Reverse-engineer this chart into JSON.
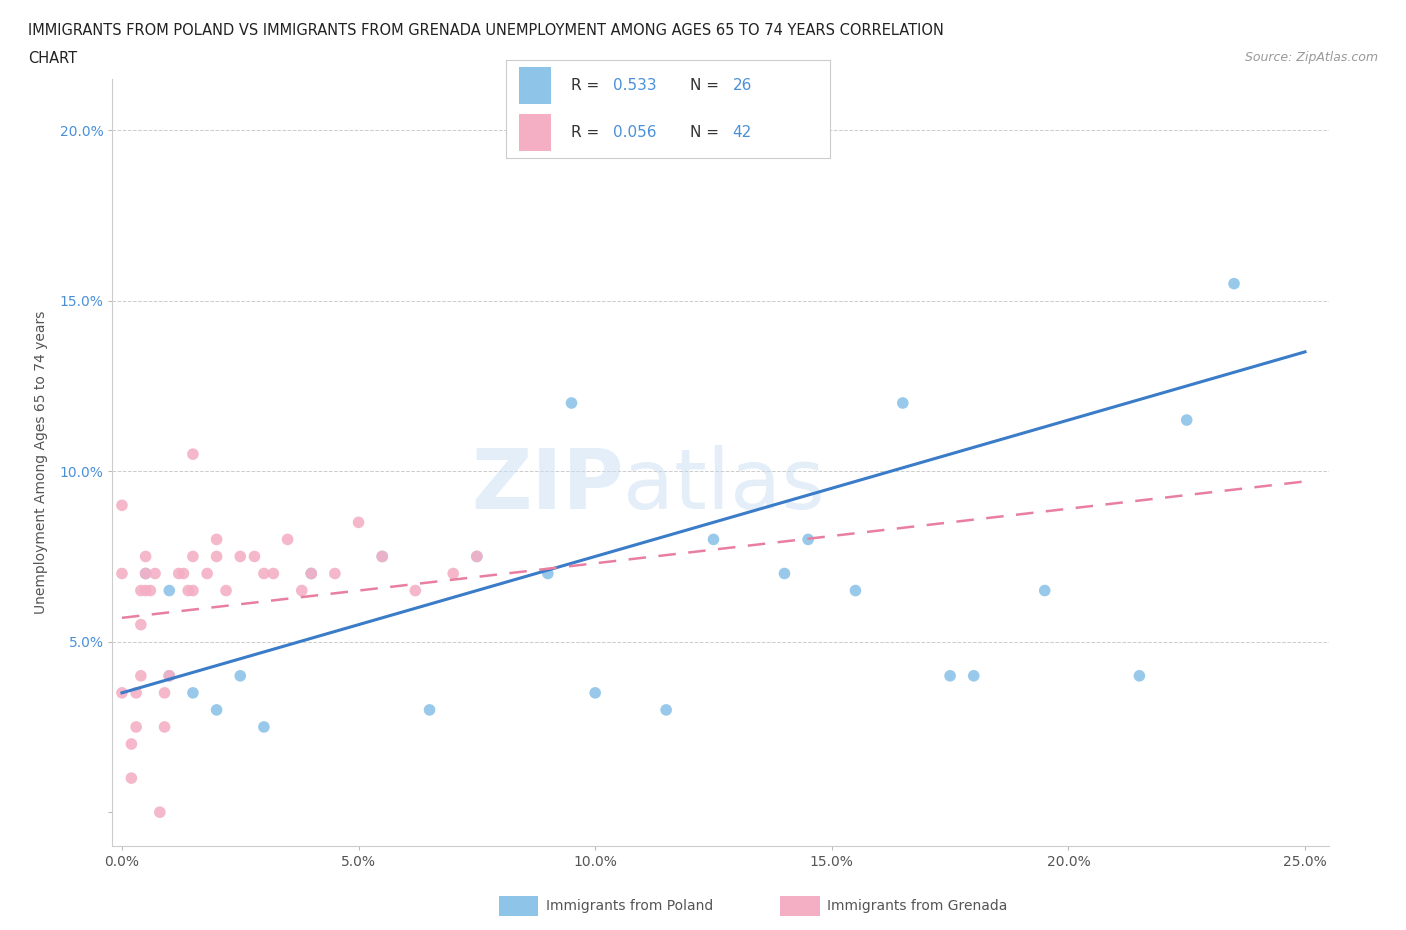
{
  "title_line1": "IMMIGRANTS FROM POLAND VS IMMIGRANTS FROM GRENADA UNEMPLOYMENT AMONG AGES 65 TO 74 YEARS CORRELATION",
  "title_line2": "CHART",
  "source": "Source: ZipAtlas.com",
  "ylabel": "Unemployment Among Ages 65 to 74 years",
  "xlim": [
    -0.002,
    0.255
  ],
  "ylim": [
    -0.01,
    0.215
  ],
  "xticks": [
    0.0,
    0.05,
    0.1,
    0.15,
    0.2,
    0.25
  ],
  "xticklabels": [
    "0.0%",
    "5.0%",
    "10.0%",
    "15.0%",
    "20.0%",
    "25.0%"
  ],
  "yticks": [
    0.0,
    0.05,
    0.1,
    0.15,
    0.2
  ],
  "yticklabels": [
    "",
    "5.0%",
    "10.0%",
    "15.0%",
    "20.0%"
  ],
  "poland_color": "#8ec4e8",
  "grenada_color": "#f4afc5",
  "poland_line_color": "#3a7cc7",
  "grenada_line_color": "#e87fa0",
  "legend_label_poland": "Immigrants from Poland",
  "legend_label_grenada": "Immigrants from Grenada",
  "poland_x": [
    0.005,
    0.01,
    0.01,
    0.015,
    0.02,
    0.025,
    0.03,
    0.04,
    0.055,
    0.065,
    0.075,
    0.09,
    0.095,
    0.1,
    0.115,
    0.125,
    0.14,
    0.145,
    0.155,
    0.165,
    0.175,
    0.18,
    0.195,
    0.215,
    0.225,
    0.235
  ],
  "poland_y": [
    0.07,
    0.065,
    0.04,
    0.035,
    0.03,
    0.04,
    0.025,
    0.07,
    0.075,
    0.03,
    0.075,
    0.07,
    0.12,
    0.035,
    0.03,
    0.08,
    0.07,
    0.08,
    0.065,
    0.12,
    0.04,
    0.04,
    0.065,
    0.04,
    0.115,
    0.155
  ],
  "grenada_x": [
    0.0,
    0.0,
    0.0,
    0.002,
    0.002,
    0.003,
    0.003,
    0.004,
    0.004,
    0.004,
    0.005,
    0.005,
    0.005,
    0.006,
    0.007,
    0.008,
    0.009,
    0.009,
    0.01,
    0.012,
    0.013,
    0.014,
    0.015,
    0.015,
    0.015,
    0.018,
    0.02,
    0.02,
    0.022,
    0.025,
    0.028,
    0.03,
    0.032,
    0.035,
    0.038,
    0.04,
    0.045,
    0.05,
    0.055,
    0.062,
    0.07,
    0.075
  ],
  "grenada_y": [
    0.035,
    0.07,
    0.09,
    0.01,
    0.02,
    0.025,
    0.035,
    0.04,
    0.055,
    0.065,
    0.07,
    0.075,
    0.065,
    0.065,
    0.07,
    0.0,
    0.025,
    0.035,
    0.04,
    0.07,
    0.07,
    0.065,
    0.075,
    0.105,
    0.065,
    0.07,
    0.075,
    0.08,
    0.065,
    0.075,
    0.075,
    0.07,
    0.07,
    0.08,
    0.065,
    0.07,
    0.07,
    0.085,
    0.075,
    0.065,
    0.07,
    0.075
  ],
  "poland_trendline_x": [
    0.0,
    0.25
  ],
  "poland_trendline_y": [
    0.035,
    0.135
  ],
  "grenada_trendline_x": [
    0.0,
    0.25
  ],
  "grenada_trendline_y": [
    0.057,
    0.097
  ],
  "background_color": "#ffffff",
  "grid_color": "#cccccc",
  "ytick_color": "#4a90d9",
  "xtick_color": "#555555",
  "axis_label_color": "#555555"
}
